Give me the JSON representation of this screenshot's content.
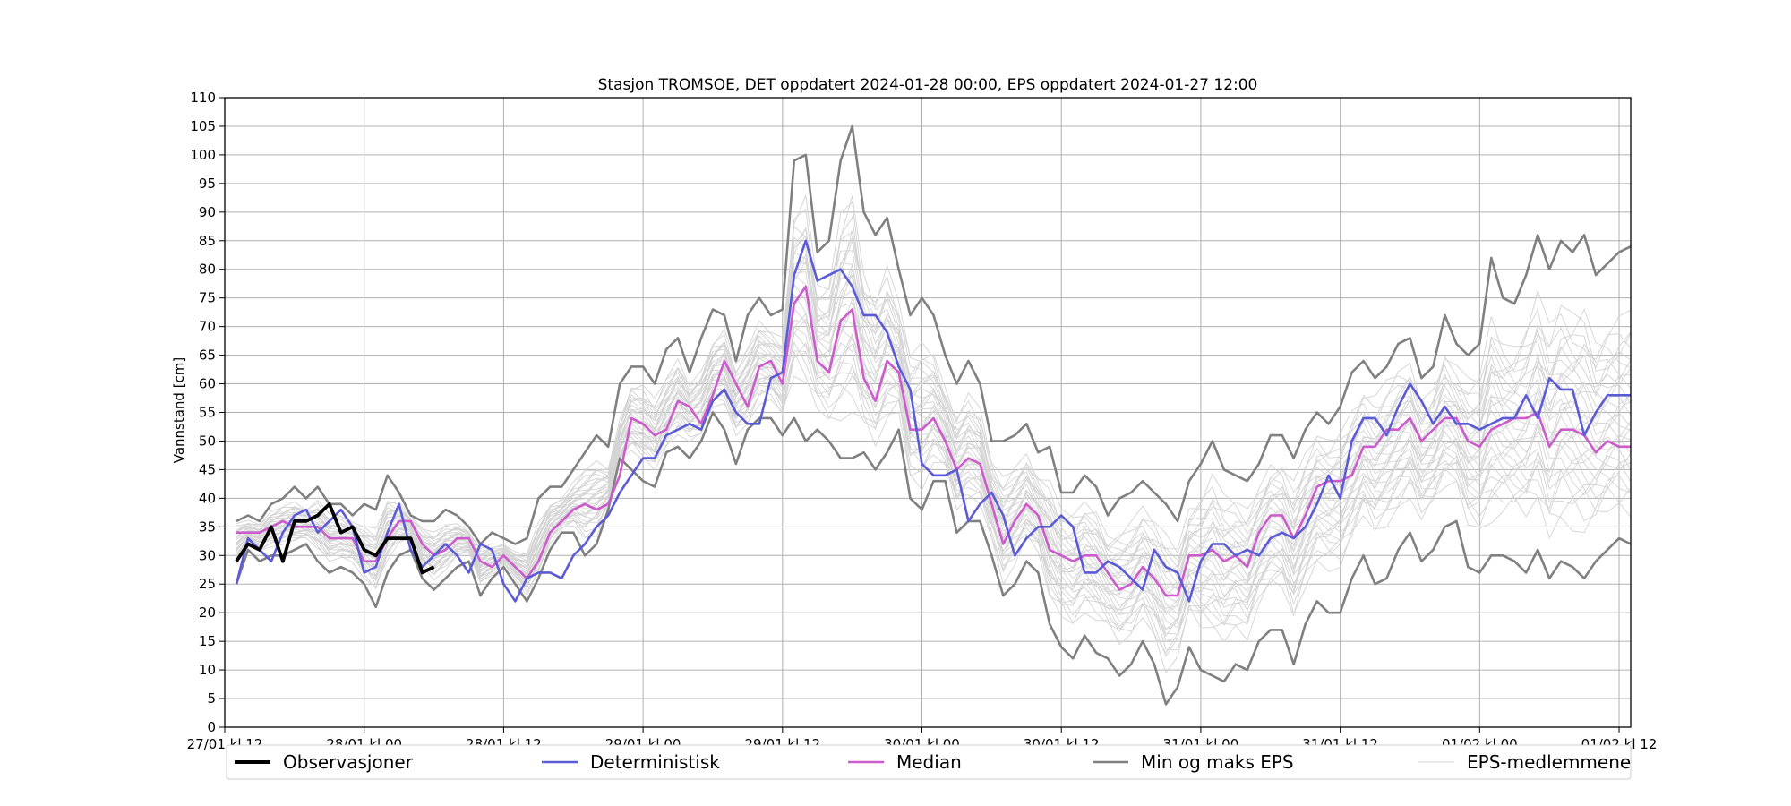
{
  "chart_data": {
    "type": "line",
    "title": "Stasjon TROMSOE, DET oppdatert 2024-01-28 00:00, EPS oppdatert 2024-01-27 12:00",
    "xlabel": "",
    "ylabel": "Vannstand [cm]",
    "xlim": [
      0,
      121
    ],
    "ylim": [
      0,
      110
    ],
    "grid": true,
    "legend_position": "bottom",
    "x_unit": "hours since 27/01 kl 12",
    "x_ticks": [
      {
        "value": 0,
        "label": "27/01 kl 12"
      },
      {
        "value": 12,
        "label": "28/01 kl 00"
      },
      {
        "value": 24,
        "label": "28/01 kl 12"
      },
      {
        "value": 36,
        "label": "29/01 kl 00"
      },
      {
        "value": 48,
        "label": "29/01 kl 12"
      },
      {
        "value": 60,
        "label": "30/01 kl 00"
      },
      {
        "value": 72,
        "label": "30/01 kl 12"
      },
      {
        "value": 84,
        "label": "31/01 kl 00"
      },
      {
        "value": 96,
        "label": "31/01 kl 12"
      },
      {
        "value": 108,
        "label": "01/02 kl 00"
      },
      {
        "value": 120,
        "label": "01/02 kl 12"
      }
    ],
    "y_ticks": [
      0,
      5,
      10,
      15,
      20,
      25,
      30,
      35,
      40,
      45,
      50,
      55,
      60,
      65,
      70,
      75,
      80,
      85,
      90,
      95,
      100,
      105,
      110
    ],
    "series": [
      {
        "name": "Observasjoner",
        "color": "#000000",
        "x": [
          1,
          2,
          3,
          4,
          5,
          6,
          7,
          8,
          9,
          10,
          11,
          12,
          13,
          14,
          15,
          16,
          17,
          18
        ],
        "values": [
          29,
          32,
          31,
          35,
          29,
          36,
          36,
          37,
          39,
          34,
          35,
          31,
          30,
          33,
          33,
          33,
          27,
          28
        ]
      },
      {
        "name": "Deterministisk",
        "color": "#5b5bd6",
        "x": [
          1,
          2,
          3,
          4,
          5,
          6,
          7,
          8,
          9,
          10,
          11,
          12,
          13,
          14,
          15,
          16,
          17,
          18,
          19,
          20,
          21,
          22,
          23,
          24,
          25,
          26,
          27,
          28,
          29,
          30,
          31,
          32,
          33,
          34,
          35,
          36,
          37,
          38,
          39,
          40,
          41,
          42,
          43,
          44,
          45,
          46,
          47,
          48,
          49,
          50,
          51,
          52,
          53,
          54,
          55,
          56,
          57,
          58,
          59,
          60,
          61,
          62,
          63,
          64,
          65,
          66,
          67,
          68,
          69,
          70,
          71,
          72,
          73,
          74,
          75,
          76,
          77,
          78,
          79,
          80,
          81,
          82,
          83,
          84,
          85,
          86,
          87,
          88,
          89,
          90,
          91,
          92,
          93,
          94,
          95,
          96,
          97,
          98,
          99,
          100,
          101,
          102,
          103,
          104,
          105,
          106,
          107,
          108,
          109,
          110,
          111,
          112,
          113,
          114,
          115,
          116,
          117,
          118,
          119,
          120,
          121
        ],
        "values": [
          25,
          33,
          31,
          29,
          34,
          37,
          38,
          34,
          36,
          38,
          35,
          27,
          28,
          34,
          39,
          31,
          28,
          30,
          32,
          30,
          27,
          32,
          31,
          25,
          22,
          26,
          27,
          27,
          26,
          30,
          32,
          35,
          37,
          41,
          44,
          47,
          47,
          51,
          52,
          53,
          52,
          57,
          59,
          55,
          53,
          53,
          61,
          62,
          79,
          85,
          78,
          79,
          80,
          77,
          72,
          72,
          69,
          63,
          59,
          46,
          44,
          44,
          45,
          36,
          39,
          41,
          37,
          30,
          33,
          35,
          35,
          37,
          35,
          27,
          27,
          29,
          28,
          26,
          24,
          31,
          28,
          27,
          22,
          29,
          32,
          32,
          30,
          31,
          30,
          33,
          34,
          33,
          35,
          39,
          44,
          40,
          50,
          54,
          54,
          51,
          56,
          60,
          57,
          53,
          56,
          53,
          53,
          52,
          53,
          54,
          54,
          58,
          54,
          61,
          59,
          59,
          51,
          55,
          58,
          58,
          58
        ]
      },
      {
        "name": "Median",
        "color": "#cc5ccc",
        "x": [
          1,
          2,
          3,
          4,
          5,
          6,
          7,
          8,
          9,
          10,
          11,
          12,
          13,
          14,
          15,
          16,
          17,
          18,
          19,
          20,
          21,
          22,
          23,
          24,
          25,
          26,
          27,
          28,
          29,
          30,
          31,
          32,
          33,
          34,
          35,
          36,
          37,
          38,
          39,
          40,
          41,
          42,
          43,
          44,
          45,
          46,
          47,
          48,
          49,
          50,
          51,
          52,
          53,
          54,
          55,
          56,
          57,
          58,
          59,
          60,
          61,
          62,
          63,
          64,
          65,
          66,
          67,
          68,
          69,
          70,
          71,
          72,
          73,
          74,
          75,
          76,
          77,
          78,
          79,
          80,
          81,
          82,
          83,
          84,
          85,
          86,
          87,
          88,
          89,
          90,
          91,
          92,
          93,
          94,
          95,
          96,
          97,
          98,
          99,
          100,
          101,
          102,
          103,
          104,
          105,
          106,
          107,
          108,
          109,
          110,
          111,
          112,
          113,
          114,
          115,
          116,
          117,
          118,
          119,
          120,
          121
        ],
        "values": [
          34,
          34,
          34,
          35,
          36,
          35,
          35,
          35,
          33,
          33,
          33,
          29,
          29,
          33,
          36,
          36,
          32,
          30,
          31,
          33,
          33,
          29,
          28,
          30,
          28,
          26,
          29,
          34,
          36,
          38,
          39,
          38,
          39,
          44,
          54,
          53,
          51,
          52,
          57,
          56,
          53,
          58,
          64,
          60,
          56,
          63,
          64,
          60,
          74,
          77,
          64,
          62,
          71,
          73,
          61,
          57,
          64,
          62,
          52,
          52,
          54,
          50,
          45,
          47,
          46,
          39,
          32,
          36,
          39,
          37,
          31,
          30,
          29,
          30,
          30,
          27,
          24,
          25,
          28,
          26,
          23,
          23,
          30,
          30,
          31,
          29,
          30,
          28,
          34,
          37,
          37,
          33,
          37,
          42,
          43,
          43,
          44,
          49,
          49,
          52,
          52,
          54,
          50,
          52,
          54,
          54,
          50,
          49,
          52,
          53,
          54,
          54,
          55,
          49,
          52,
          52,
          51,
          48,
          50,
          49,
          49
        ]
      },
      {
        "name": "Min og maks EPS",
        "color": "#808080",
        "x": [
          1,
          2,
          3,
          4,
          5,
          6,
          7,
          8,
          9,
          10,
          11,
          12,
          13,
          14,
          15,
          16,
          17,
          18,
          19,
          20,
          21,
          22,
          23,
          24,
          25,
          26,
          27,
          28,
          29,
          30,
          31,
          32,
          33,
          34,
          35,
          36,
          37,
          38,
          39,
          40,
          41,
          42,
          43,
          44,
          45,
          46,
          47,
          48,
          49,
          50,
          51,
          52,
          53,
          54,
          55,
          56,
          57,
          58,
          59,
          60,
          61,
          62,
          63,
          64,
          65,
          66,
          67,
          68,
          69,
          70,
          71,
          72,
          73,
          74,
          75,
          76,
          77,
          78,
          79,
          80,
          81,
          82,
          83,
          84,
          85,
          86,
          87,
          88,
          89,
          90,
          91,
          92,
          93,
          94,
          95,
          96,
          97,
          98,
          99,
          100,
          101,
          102,
          103,
          104,
          105,
          106,
          107,
          108,
          109,
          110,
          111,
          112,
          113,
          114,
          115,
          116,
          117,
          118,
          119,
          120,
          121
        ],
        "max_values": [
          36,
          37,
          36,
          39,
          40,
          42,
          40,
          42,
          39,
          39,
          37,
          39,
          38,
          44,
          41,
          37,
          36,
          36,
          38,
          37,
          35,
          32,
          34,
          33,
          32,
          33,
          40,
          42,
          42,
          45,
          48,
          51,
          49,
          60,
          63,
          63,
          60,
          66,
          68,
          62,
          68,
          73,
          72,
          64,
          72,
          75,
          72,
          73,
          99,
          100,
          83,
          85,
          99,
          105,
          90,
          86,
          89,
          80,
          72,
          75,
          72,
          65,
          60,
          64,
          60,
          50,
          50,
          51,
          53,
          48,
          49,
          41,
          41,
          44,
          42,
          37,
          40,
          41,
          43,
          41,
          39,
          36,
          43,
          46,
          50,
          45,
          44,
          43,
          46,
          51,
          51,
          47,
          52,
          55,
          53,
          56,
          62,
          64,
          61,
          63,
          67,
          68,
          61,
          63,
          72,
          67,
          65,
          67,
          82,
          75,
          74,
          79,
          86,
          80,
          85,
          83,
          86,
          79,
          81,
          83,
          84
        ],
        "min_values": [
          25,
          31,
          29,
          30,
          30,
          31,
          32,
          29,
          27,
          28,
          27,
          25,
          21,
          27,
          30,
          31,
          26,
          24,
          26,
          28,
          29,
          23,
          26,
          28,
          25,
          22,
          26,
          31,
          34,
          34,
          30,
          32,
          38,
          47,
          45,
          43,
          42,
          48,
          49,
          47,
          50,
          55,
          52,
          46,
          52,
          54,
          54,
          51,
          54,
          50,
          52,
          50,
          47,
          47,
          48,
          45,
          48,
          52,
          40,
          38,
          43,
          43,
          34,
          36,
          36,
          30,
          23,
          25,
          29,
          27,
          18,
          14,
          12,
          16,
          13,
          12,
          9,
          11,
          15,
          11,
          4,
          7,
          14,
          10,
          9,
          8,
          11,
          10,
          15,
          17,
          17,
          11,
          18,
          22,
          20,
          20,
          26,
          30,
          25,
          26,
          31,
          34,
          29,
          31,
          35,
          36,
          28,
          27,
          30,
          30,
          29,
          27,
          31,
          26,
          29,
          28,
          26,
          29,
          31,
          33,
          32
        ]
      },
      {
        "name": "EPS-medlemmene",
        "color": "#d3d3d3"
      }
    ]
  }
}
